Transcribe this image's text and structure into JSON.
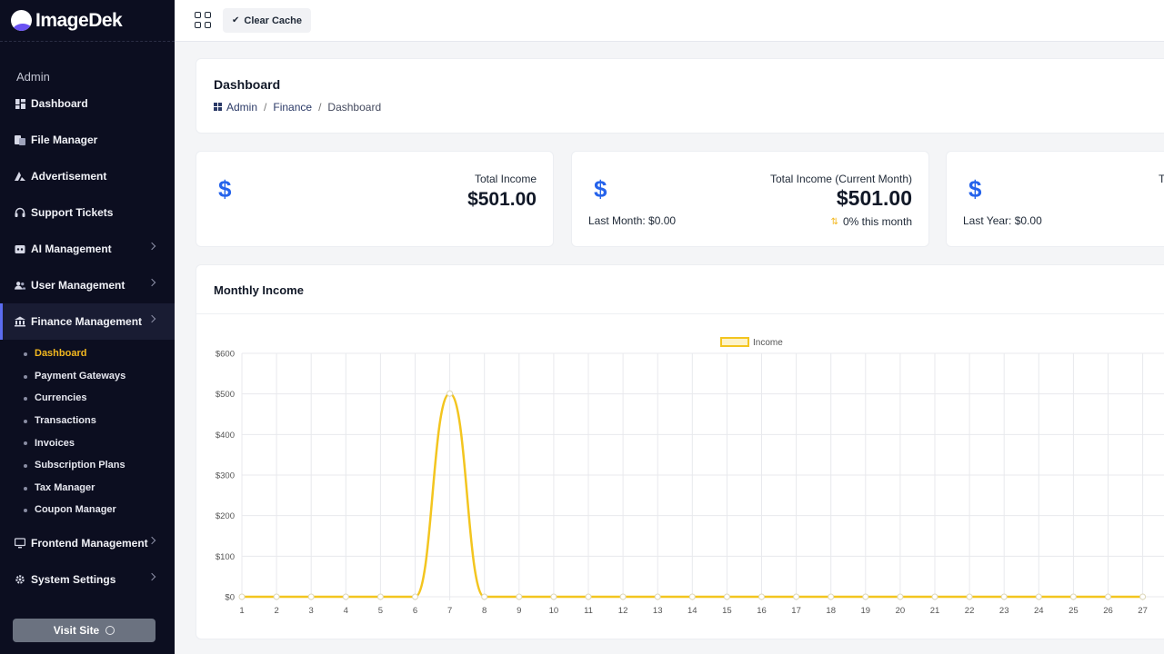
{
  "brand": {
    "name": "ImageDek"
  },
  "sidebar": {
    "section_label": "Admin",
    "items": [
      {
        "label": "Dashboard",
        "icon": "dashboard-icon",
        "chevron": false
      },
      {
        "label": "File Manager",
        "icon": "file-manager-icon",
        "chevron": false
      },
      {
        "label": "Advertisement",
        "icon": "advertisement-icon",
        "chevron": false
      },
      {
        "label": "Support Tickets",
        "icon": "headset-icon",
        "chevron": false
      },
      {
        "label": "AI Management",
        "icon": "ai-icon",
        "chevron": true
      },
      {
        "label": "User Management",
        "icon": "users-icon",
        "chevron": true
      },
      {
        "label": "Finance Management",
        "icon": "bank-icon",
        "chevron": true,
        "active": true
      },
      {
        "label": "Frontend Management",
        "icon": "monitor-icon",
        "chevron": true
      },
      {
        "label": "System Settings",
        "icon": "gear-icon",
        "chevron": true
      }
    ],
    "finance_sub": [
      {
        "label": "Dashboard",
        "active": true
      },
      {
        "label": "Payment Gateways"
      },
      {
        "label": "Currencies"
      },
      {
        "label": "Transactions"
      },
      {
        "label": "Invoices"
      },
      {
        "label": "Subscription Plans"
      },
      {
        "label": "Tax Manager"
      },
      {
        "label": "Coupon Manager"
      }
    ],
    "visit_site": "Visit Site"
  },
  "topbar": {
    "clear_cache": "Clear Cache"
  },
  "header": {
    "title": "Dashboard",
    "breadcrumb": [
      "Admin",
      "Finance",
      "Dashboard"
    ]
  },
  "stats": [
    {
      "label": "Total Income",
      "value": "$501.00"
    },
    {
      "label": "Total Income (Current Month)",
      "value": "$501.00",
      "sub": "Last Month: $0.00",
      "change": "0% this month"
    },
    {
      "label": "To",
      "sub": "Last Year: $0.00"
    }
  ],
  "colors": {
    "accent": "#f3c51f",
    "dollar": "#2563eb",
    "sidebar_bg": "#0c0e20"
  },
  "chart": {
    "title": "Monthly Income"
  },
  "chart_data": {
    "type": "line",
    "title": "",
    "legend": [
      "Income"
    ],
    "legend_position": "top-center",
    "x": [
      1,
      2,
      3,
      4,
      5,
      6,
      7,
      8,
      9,
      10,
      11,
      12,
      13,
      14,
      15,
      16,
      17,
      18,
      19,
      20,
      21,
      22,
      23,
      24,
      25,
      26,
      27
    ],
    "series": [
      {
        "name": "Income",
        "values": [
          0,
          0,
          0,
          0,
          0,
          0,
          501,
          0,
          0,
          0,
          0,
          0,
          0,
          0,
          0,
          0,
          0,
          0,
          0,
          0,
          0,
          0,
          0,
          0,
          0,
          0,
          0
        ]
      }
    ],
    "y_ticks": [
      "$0",
      "$100",
      "$200",
      "$300",
      "$400",
      "$500",
      "$600"
    ],
    "ylim": [
      0,
      600
    ],
    "grid": true,
    "color": "#f3c51f"
  }
}
